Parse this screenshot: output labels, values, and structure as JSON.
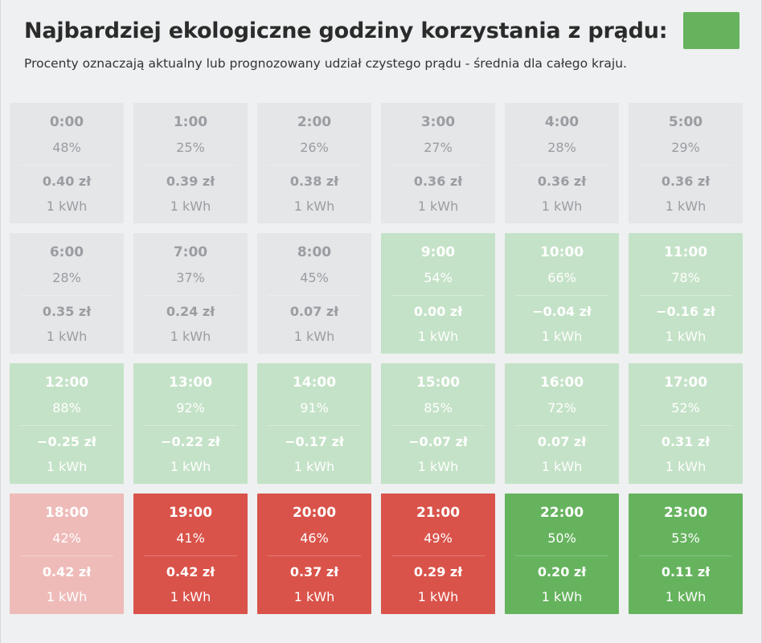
{
  "header": {
    "title": "Najbardziej ekologiczne godziny korzystania z prądu:",
    "swatch_color": "#66b35e",
    "subtitle": "Procenty oznaczają aktualny lub prognozowany udział czystego prądu - średnia dla całego kraju."
  },
  "colors": {
    "gray": "#e4e6e8",
    "light_green": "#c4e2c7",
    "light_red": "#eebbb9",
    "red": "#d9534a",
    "green": "#66b35e"
  },
  "hours": [
    {
      "time": "0:00",
      "share": "48%",
      "price": "0.40 zł",
      "unit": "1 kWh",
      "status": "gray"
    },
    {
      "time": "1:00",
      "share": "25%",
      "price": "0.39 zł",
      "unit": "1 kWh",
      "status": "gray"
    },
    {
      "time": "2:00",
      "share": "26%",
      "price": "0.38 zł",
      "unit": "1 kWh",
      "status": "gray"
    },
    {
      "time": "3:00",
      "share": "27%",
      "price": "0.36 zł",
      "unit": "1 kWh",
      "status": "gray"
    },
    {
      "time": "4:00",
      "share": "28%",
      "price": "0.36 zł",
      "unit": "1 kWh",
      "status": "gray"
    },
    {
      "time": "5:00",
      "share": "29%",
      "price": "0.36 zł",
      "unit": "1 kWh",
      "status": "gray"
    },
    {
      "time": "6:00",
      "share": "28%",
      "price": "0.35 zł",
      "unit": "1 kWh",
      "status": "gray"
    },
    {
      "time": "7:00",
      "share": "37%",
      "price": "0.24 zł",
      "unit": "1 kWh",
      "status": "gray"
    },
    {
      "time": "8:00",
      "share": "45%",
      "price": "0.07 zł",
      "unit": "1 kWh",
      "status": "gray"
    },
    {
      "time": "9:00",
      "share": "54%",
      "price": "0.00 zł",
      "unit": "1 kWh",
      "status": "lightgreen"
    },
    {
      "time": "10:00",
      "share": "66%",
      "price": "−0.04 zł",
      "unit": "1 kWh",
      "status": "lightgreen"
    },
    {
      "time": "11:00",
      "share": "78%",
      "price": "−0.16 zł",
      "unit": "1 kWh",
      "status": "lightgreen"
    },
    {
      "time": "12:00",
      "share": "88%",
      "price": "−0.25 zł",
      "unit": "1 kWh",
      "status": "lightgreen"
    },
    {
      "time": "13:00",
      "share": "92%",
      "price": "−0.22 zł",
      "unit": "1 kWh",
      "status": "lightgreen"
    },
    {
      "time": "14:00",
      "share": "91%",
      "price": "−0.17 zł",
      "unit": "1 kWh",
      "status": "lightgreen"
    },
    {
      "time": "15:00",
      "share": "85%",
      "price": "−0.07 zł",
      "unit": "1 kWh",
      "status": "lightgreen"
    },
    {
      "time": "16:00",
      "share": "72%",
      "price": "0.07 zł",
      "unit": "1 kWh",
      "status": "lightgreen"
    },
    {
      "time": "17:00",
      "share": "52%",
      "price": "0.31 zł",
      "unit": "1 kWh",
      "status": "lightgreen"
    },
    {
      "time": "18:00",
      "share": "42%",
      "price": "0.42 zł",
      "unit": "1 kWh",
      "status": "lightred"
    },
    {
      "time": "19:00",
      "share": "41%",
      "price": "0.42 zł",
      "unit": "1 kWh",
      "status": "red"
    },
    {
      "time": "20:00",
      "share": "46%",
      "price": "0.37 zł",
      "unit": "1 kWh",
      "status": "red"
    },
    {
      "time": "21:00",
      "share": "49%",
      "price": "0.29 zł",
      "unit": "1 kWh",
      "status": "red"
    },
    {
      "time": "22:00",
      "share": "50%",
      "price": "0.20 zł",
      "unit": "1 kWh",
      "status": "green"
    },
    {
      "time": "23:00",
      "share": "53%",
      "price": "0.11 zł",
      "unit": "1 kWh",
      "status": "green"
    }
  ]
}
